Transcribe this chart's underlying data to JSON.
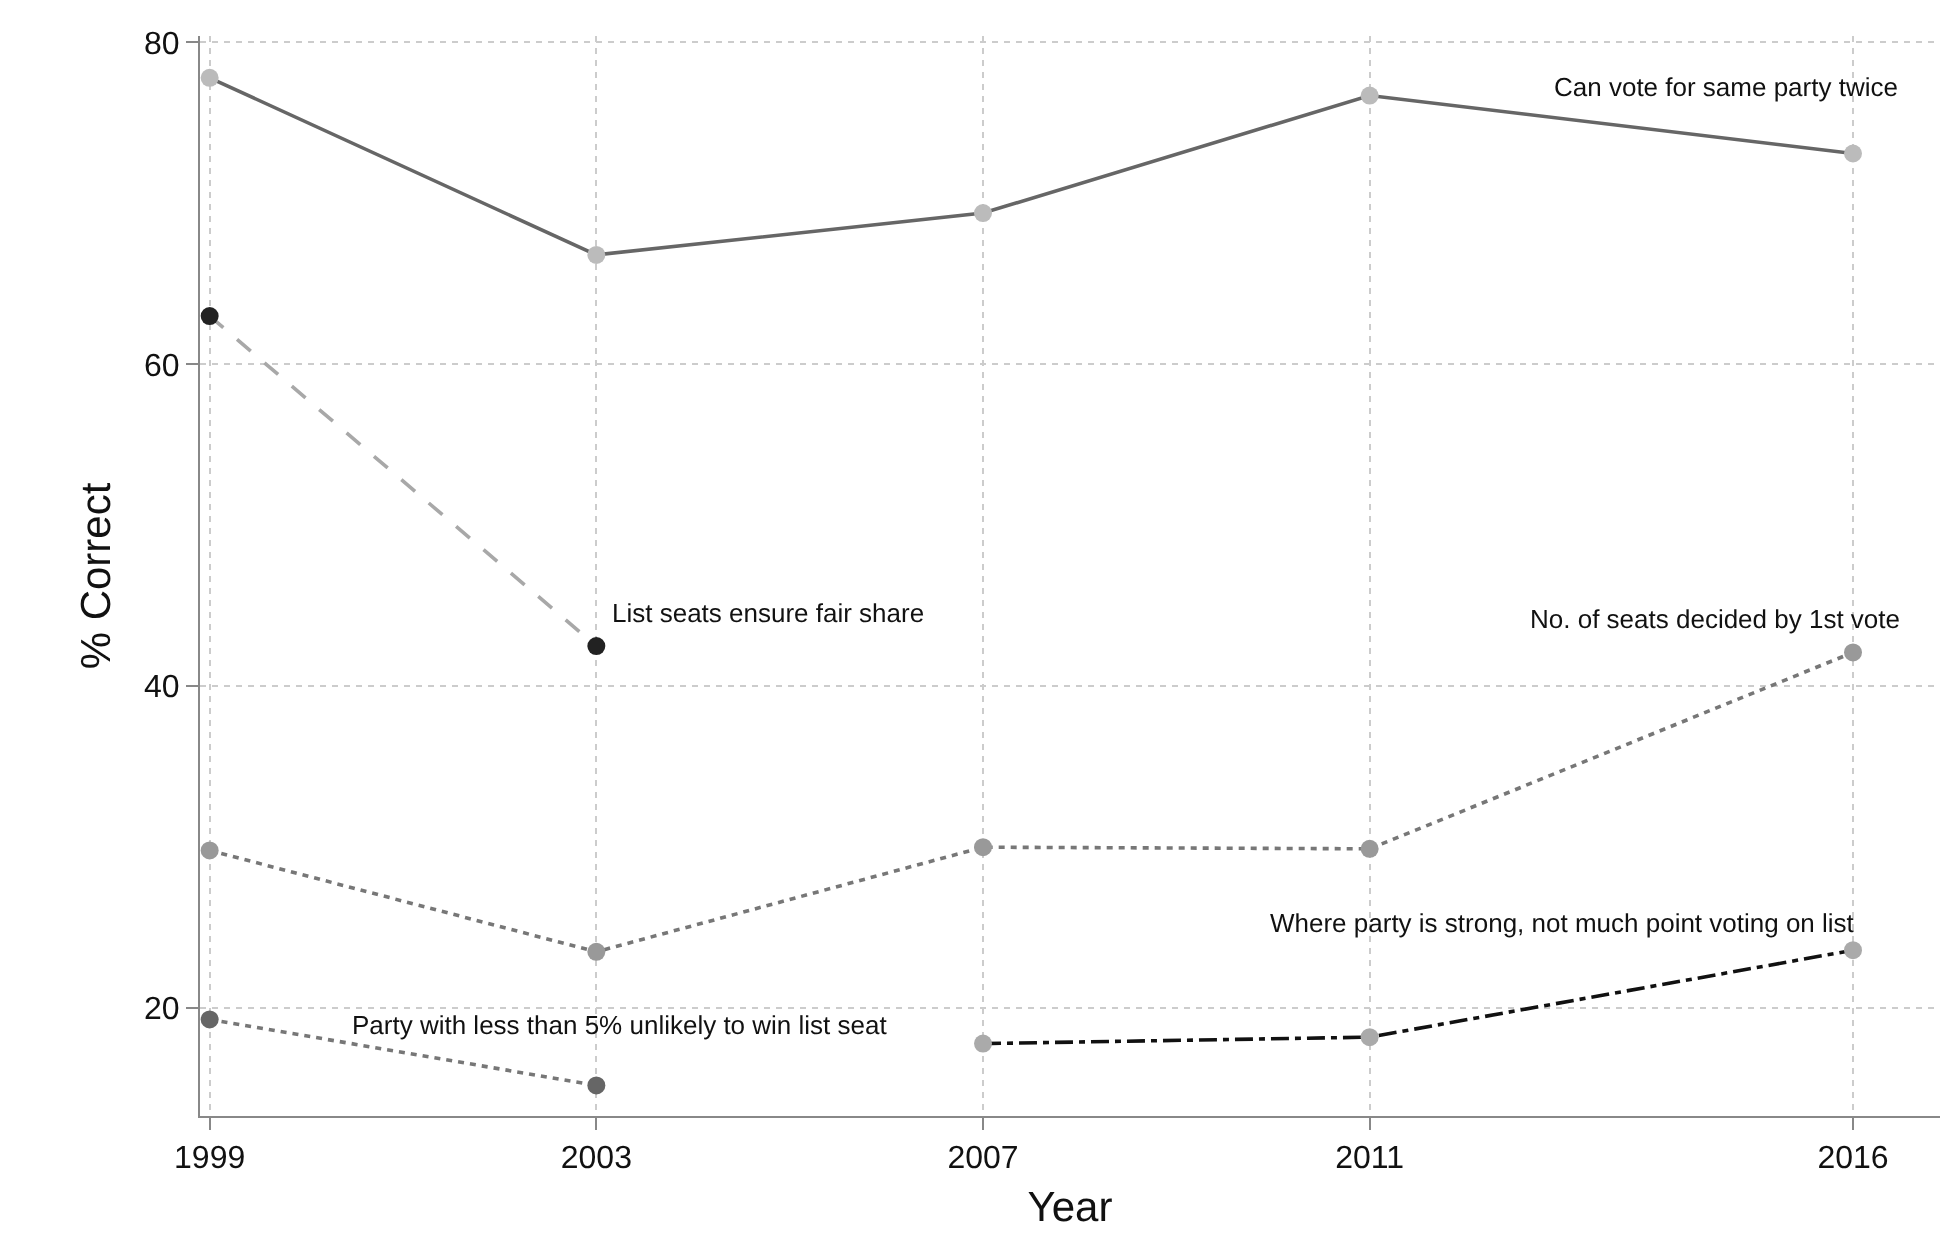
{
  "chart_data": {
    "type": "line",
    "xlabel": "Year",
    "ylabel": "% Correct",
    "x": [
      1999,
      2003,
      2007,
      2011,
      2016
    ],
    "series": [
      {
        "name": "Can vote for same party twice",
        "color": "#666666",
        "colors": [
          "#bbbbbb",
          "#bbbbbb",
          "#bbbbbb",
          "#bbbbbb",
          "#bbbbbb"
        ],
        "line_style": "solid",
        "values": [
          77.8,
          66.8,
          69.4,
          76.7,
          73.1
        ]
      },
      {
        "name": "List seats ensure fair share",
        "color": "#a8a8a8",
        "colors": [
          "#222222",
          "#222222",
          null,
          null,
          null
        ],
        "line_style": "dashed",
        "values": [
          63.0,
          42.5,
          null,
          null,
          null
        ]
      },
      {
        "name": "No. of seats decided by 1st vote",
        "color": "#777777",
        "colors": [
          "#999999",
          "#999999",
          "#999999",
          "#999999",
          "#999999"
        ],
        "line_style": "dotted",
        "values": [
          29.8,
          23.5,
          30.0,
          29.9,
          42.1
        ]
      },
      {
        "name": "Party with less than 5% unlikely to win list seat",
        "color": "#777777",
        "colors": [
          "#666666",
          "#666666",
          null,
          null,
          null
        ],
        "line_style": "dotted",
        "values": [
          19.3,
          15.2,
          null,
          null,
          null
        ]
      },
      {
        "name": "Where party is strong, not much point voting on list",
        "color": "#111111",
        "colors": [
          null,
          null,
          "#aaaaaa",
          "#aaaaaa",
          "#aaaaaa"
        ],
        "line_style": "dashdot",
        "values": [
          null,
          null,
          17.8,
          18.2,
          23.6
        ]
      }
    ],
    "xlim": [
      1998.9,
      2016.9
    ],
    "xticks": [
      1999,
      2003,
      2007,
      2011,
      2016
    ],
    "ylim": [
      13.3,
      80.4
    ],
    "yticks": [
      20,
      40,
      60,
      80
    ],
    "grid": true,
    "marker": "circle",
    "legend": false
  }
}
